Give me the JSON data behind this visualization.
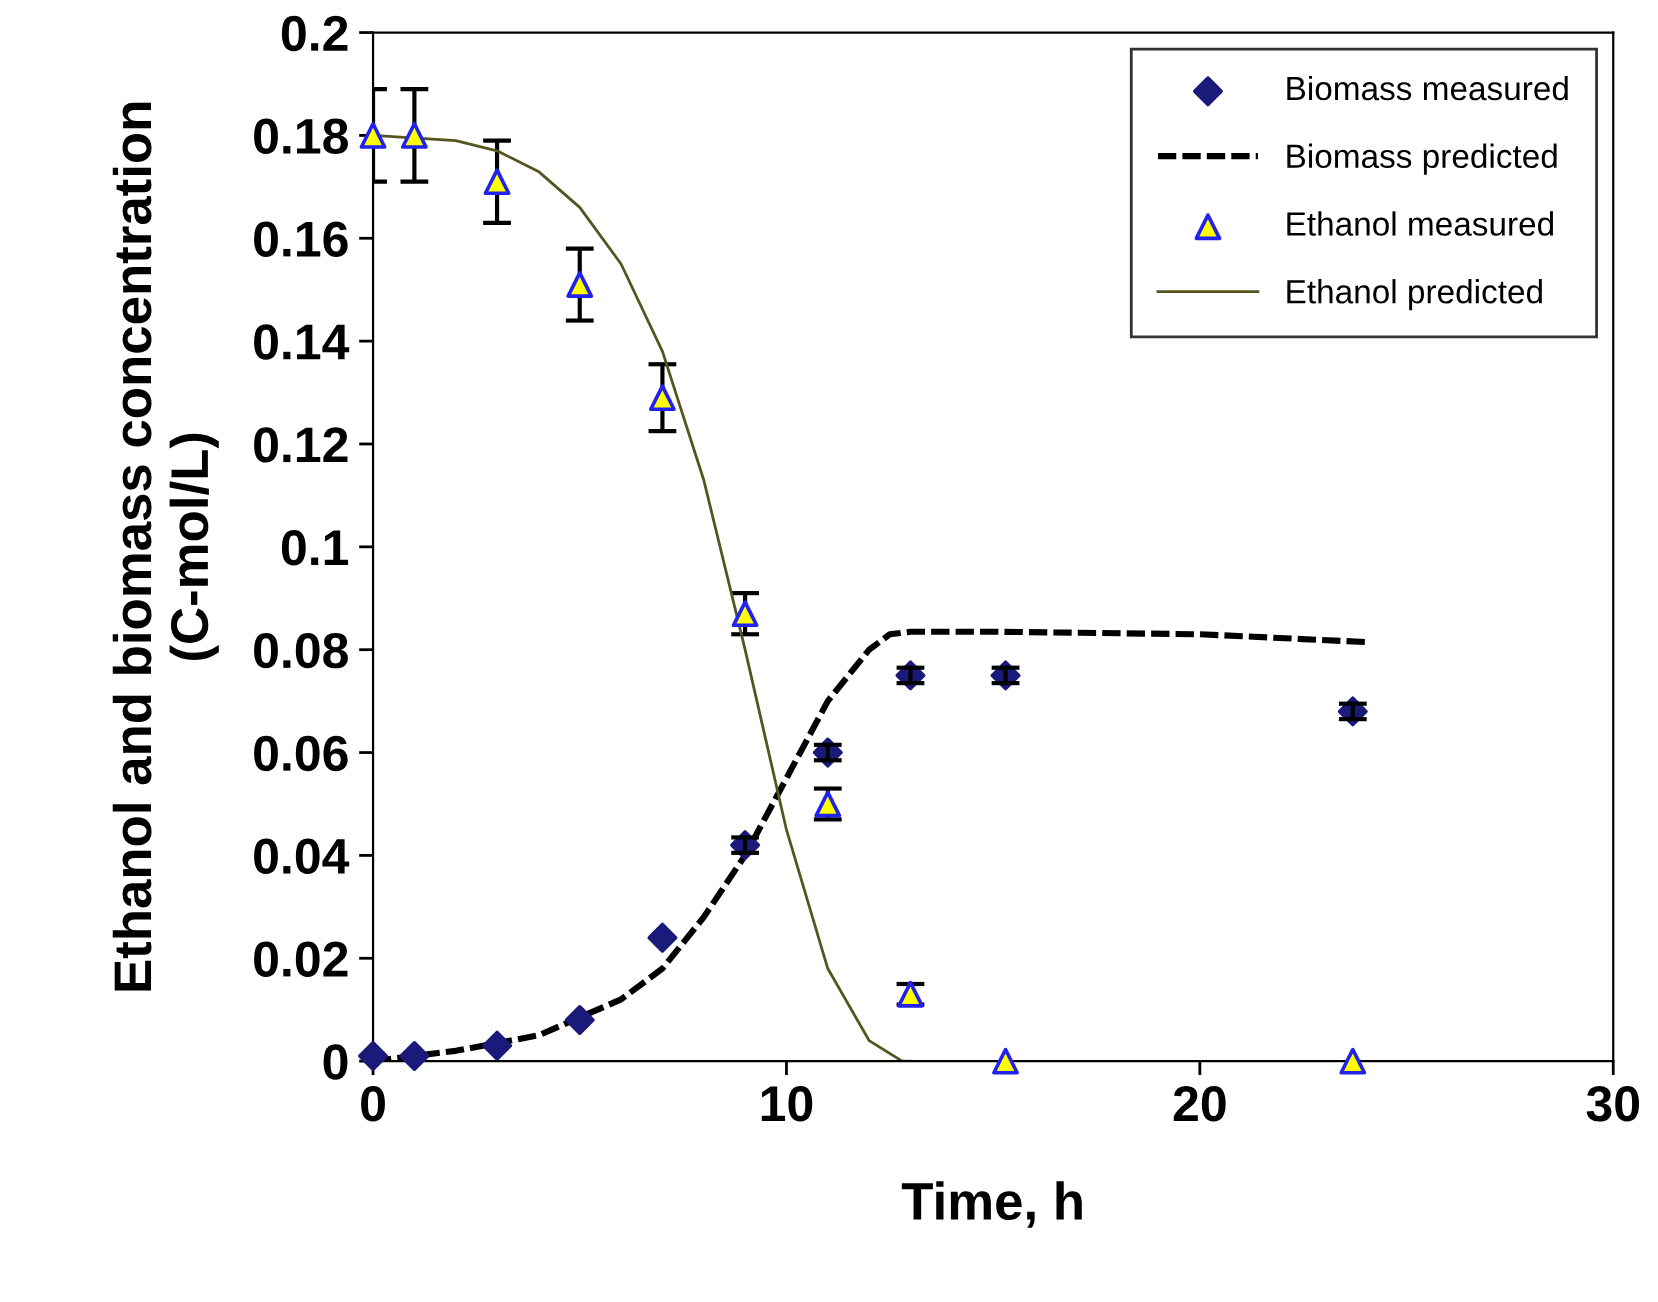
{
  "chart_data": {
    "type": "scatter",
    "xlabel": "Time, h",
    "ylabel": "Ethanol and biomass concentration\n(C-mol/L)",
    "xlim": [
      0,
      30
    ],
    "xticks": [
      0,
      10,
      20,
      30
    ],
    "ylim": [
      0,
      0.2
    ],
    "yticks": [
      0,
      0.02,
      0.04,
      0.06,
      0.08,
      0.1,
      0.12,
      0.14,
      0.16,
      0.18,
      0.2
    ],
    "grid": false,
    "legend": "top right",
    "series": [
      {
        "name": "Biomass measured",
        "marker": "diamond",
        "color": "#1a1a7a",
        "x": [
          0,
          1,
          3,
          5,
          7,
          9,
          11,
          13,
          15.3,
          23.7
        ],
        "values": [
          0.001,
          0.001,
          0.003,
          0.008,
          0.024,
          0.042,
          0.06,
          0.075,
          0.075,
          0.068
        ],
        "errors": [
          null,
          null,
          null,
          null,
          null,
          0.0015,
          0.0015,
          0.0015,
          0.0015,
          0.0015
        ]
      },
      {
        "name": "Biomass predicted",
        "type": "line",
        "line_style": "dashed",
        "color": "#000000",
        "x": [
          0,
          2,
          4,
          6,
          7,
          8,
          9,
          10,
          11,
          12,
          12.5,
          13,
          15,
          20,
          24
        ],
        "values": [
          0,
          0.002,
          0.005,
          0.012,
          0.018,
          0.028,
          0.04,
          0.055,
          0.07,
          0.08,
          0.083,
          0.0835,
          0.0835,
          0.083,
          0.0815
        ]
      },
      {
        "name": "Ethanol measured",
        "marker": "triangle",
        "color": "#ffff00",
        "x": [
          0,
          1,
          3,
          5,
          7,
          9,
          11,
          13,
          15.3,
          23.7
        ],
        "values": [
          0.18,
          0.18,
          0.171,
          0.151,
          0.129,
          0.087,
          0.05,
          0.013,
          0,
          0
        ],
        "errors": [
          0.009,
          0.009,
          0.008,
          0.007,
          0.0065,
          0.004,
          0.003,
          0.002,
          null,
          null
        ]
      },
      {
        "name": "Ethanol predicted",
        "type": "line",
        "line_style": "solid",
        "color": "#555522",
        "x": [
          0,
          2,
          3,
          4,
          5,
          6,
          7,
          8,
          9,
          10,
          11,
          12,
          12.8,
          13
        ],
        "values": [
          0.18,
          0.179,
          0.177,
          0.173,
          0.166,
          0.155,
          0.138,
          0.113,
          0.08,
          0.045,
          0.018,
          0.004,
          0,
          0
        ]
      }
    ]
  }
}
